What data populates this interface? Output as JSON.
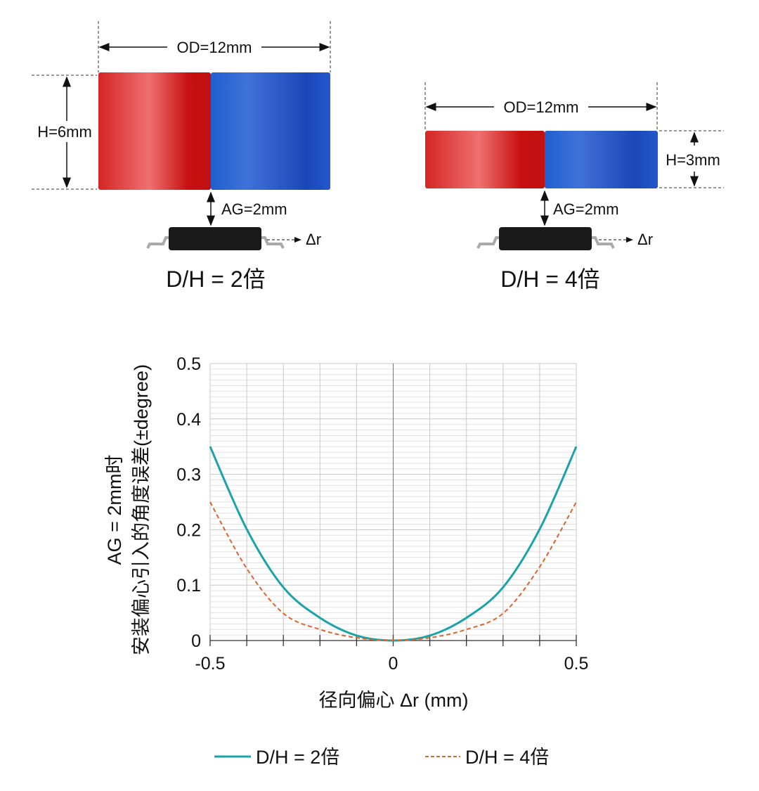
{
  "diagrams": [
    {
      "od_label": "OD=12mm",
      "h_label": "H=6mm",
      "ag_label": "AG=2mm",
      "dr_label": "Δr",
      "ratio_label": "D/H = 2倍"
    },
    {
      "od_label": "OD=12mm",
      "h_label": "H=3mm",
      "ag_label": "AG=2mm",
      "dr_label": "Δr",
      "ratio_label": "D/H = 4倍"
    }
  ],
  "colors": {
    "magnet_north": "#d01818",
    "magnet_south": "#1f56c8",
    "chip": "#1a1a1a",
    "series_2x": "#1aa3a8",
    "series_4x": "#e0632b"
  },
  "chart_data": {
    "type": "line",
    "ylabel_line1": "AG = 2mm时",
    "ylabel_line2": "安装偏心引入的角度误差(±degree)",
    "xlabel": "径向偏心 Δr (mm)",
    "xlim": [
      -0.5,
      0.5
    ],
    "ylim": [
      0,
      0.5
    ],
    "xticks": [
      "-0.5",
      "0",
      "0.5"
    ],
    "yticks": [
      "0",
      "0.1",
      "0.2",
      "0.3",
      "0.4",
      "0.5"
    ],
    "grid": true,
    "legend_position": "bottom",
    "x": [
      -0.5,
      -0.4,
      -0.3,
      -0.2,
      -0.1,
      0,
      0.1,
      0.2,
      0.3,
      0.4,
      0.5
    ],
    "series": [
      {
        "name": "D/H = 2倍",
        "style": "solid",
        "values": [
          0.35,
          0.201,
          0.096,
          0.041,
          0.009,
          0,
          0.009,
          0.041,
          0.096,
          0.201,
          0.35
        ]
      },
      {
        "name": "D/H = 4倍",
        "style": "dashed",
        "values": [
          0.25,
          0.13,
          0.049,
          0.02,
          0.005,
          0,
          0.005,
          0.02,
          0.049,
          0.133,
          0.25
        ]
      }
    ]
  }
}
